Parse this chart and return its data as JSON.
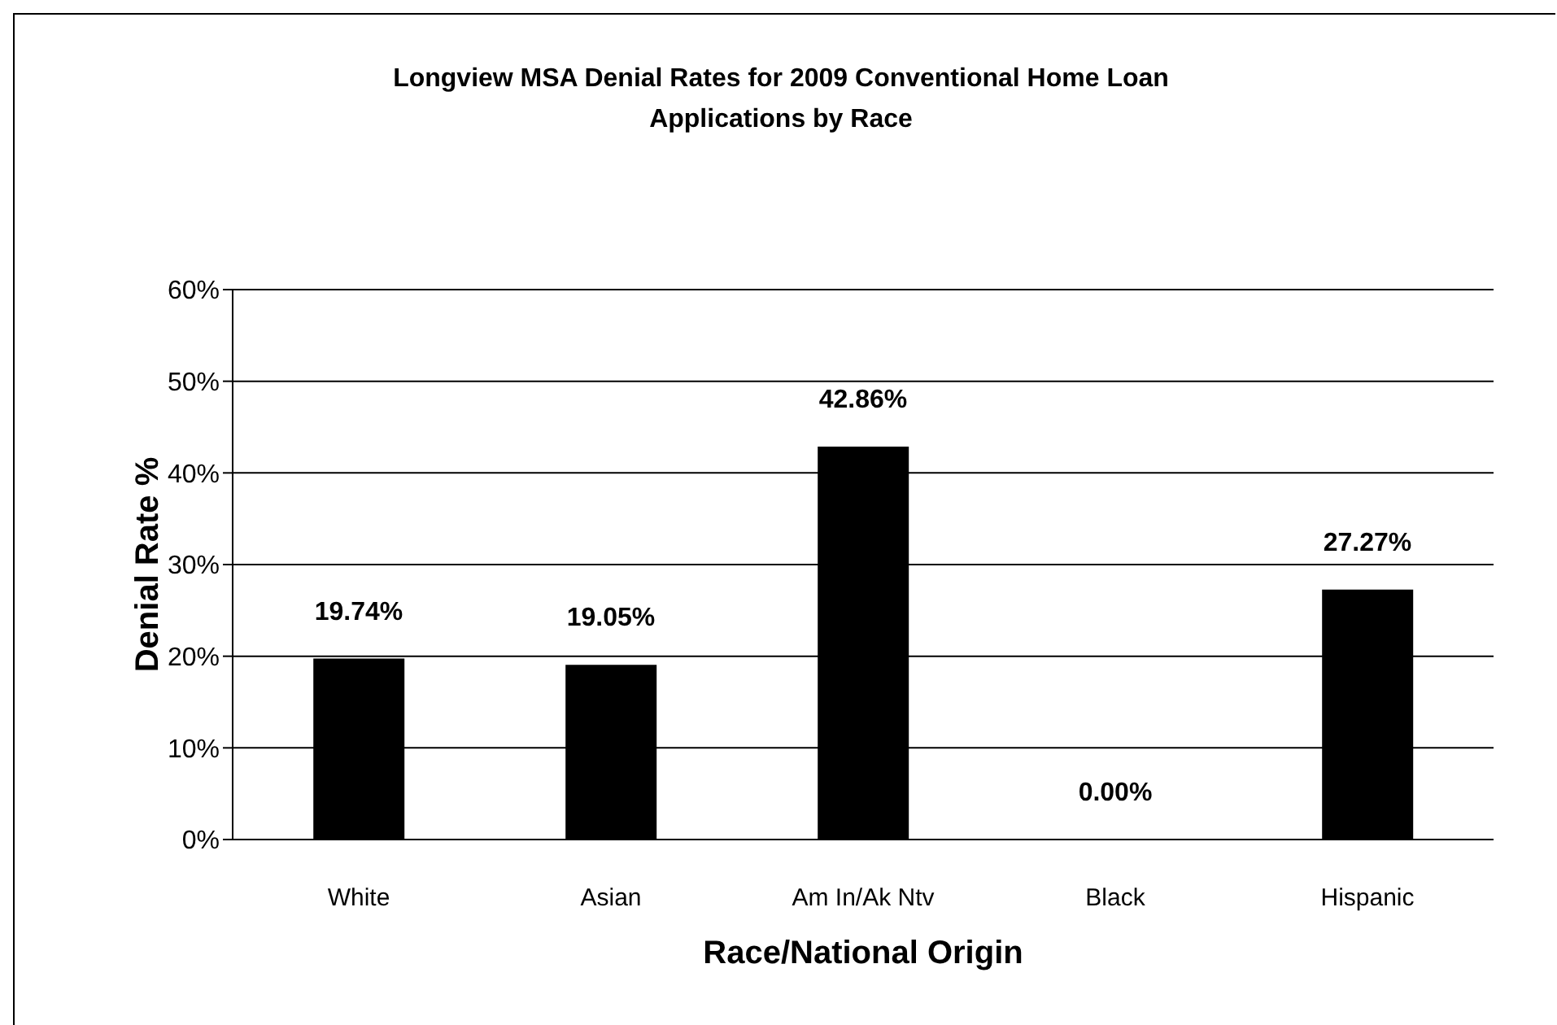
{
  "chart_data": {
    "type": "bar",
    "title": "Longview MSA Denial Rates for 2009 Conventional Home Loan Applications by Race",
    "xlabel": "Race/National Origin",
    "ylabel": "Denial Rate %",
    "categories": [
      "White",
      "Asian",
      "Am In/Ak Ntv",
      "Black",
      "Hispanic"
    ],
    "values": [
      19.74,
      19.05,
      42.86,
      0,
      27.27
    ],
    "value_labels": [
      "19.74%",
      "19.05%",
      "42.86%",
      "0.00%",
      "27.27%"
    ],
    "color": "#000000",
    "ylim": [
      0,
      60
    ],
    "yticks": [
      {
        "value": 0,
        "label": "0%"
      },
      {
        "value": 10,
        "label": "10%"
      },
      {
        "value": 20,
        "label": "20%"
      },
      {
        "value": 30,
        "label": "30%"
      },
      {
        "value": 40,
        "label": "40%"
      },
      {
        "value": 50,
        "label": "50%"
      },
      {
        "value": 60,
        "label": "60%"
      }
    ],
    "grid": "y"
  }
}
